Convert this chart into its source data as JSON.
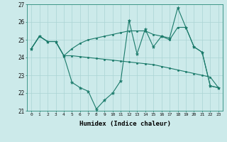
{
  "xlabel": "Humidex (Indice chaleur)",
  "background_color": "#cceaea",
  "grid_color": "#aad4d4",
  "line_color": "#1a7a6a",
  "x": [
    0,
    1,
    2,
    3,
    4,
    5,
    6,
    7,
    8,
    9,
    10,
    11,
    12,
    13,
    14,
    15,
    16,
    17,
    18,
    19,
    20,
    21,
    22,
    23
  ],
  "line1": [
    24.5,
    25.2,
    24.9,
    24.9,
    24.1,
    22.6,
    22.3,
    22.1,
    21.1,
    21.6,
    22.0,
    22.7,
    26.1,
    24.2,
    25.6,
    24.6,
    25.2,
    25.1,
    26.8,
    25.7,
    24.6,
    24.3,
    22.4,
    22.3
  ],
  "line2": [
    24.5,
    25.2,
    24.9,
    24.9,
    24.1,
    24.1,
    24.05,
    24.0,
    23.95,
    23.9,
    23.85,
    23.8,
    23.75,
    23.7,
    23.65,
    23.6,
    23.5,
    23.4,
    23.3,
    23.2,
    23.1,
    23.0,
    22.9,
    22.3
  ],
  "line3": [
    24.5,
    25.2,
    24.9,
    24.9,
    24.1,
    24.5,
    24.8,
    25.0,
    25.1,
    25.2,
    25.3,
    25.4,
    25.5,
    25.5,
    25.5,
    25.3,
    25.2,
    25.0,
    25.7,
    25.7,
    24.6,
    24.3,
    22.4,
    22.3
  ],
  "ylim": [
    21,
    27
  ],
  "xlim": [
    -0.5,
    23.5
  ],
  "yticks": [
    21,
    22,
    23,
    24,
    25,
    26,
    27
  ]
}
